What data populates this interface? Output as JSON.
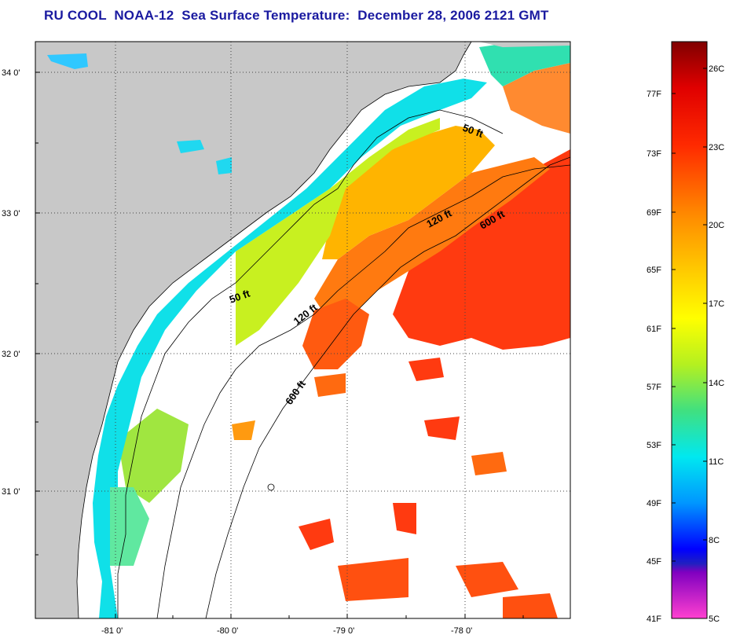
{
  "title": "RU COOL  NOAA-12  Sea Surface Temperature:  December 28, 2006 2121 GMT",
  "map": {
    "lat_labels": [
      "34 0'",
      "33 0'",
      "32 0'",
      "31 0'"
    ],
    "lon_labels": [
      "-81 0'",
      "-80 0'",
      "-79 0'",
      "-78 0'"
    ],
    "contours": [
      {
        "label": "50 ft"
      },
      {
        "label": "50 ft"
      },
      {
        "label": "120 ft"
      },
      {
        "label": "120 ft"
      },
      {
        "label": "600 ft"
      },
      {
        "label": "600 ft"
      }
    ],
    "colors": {
      "land": "#c8c8c8",
      "cloud": "#ffffff",
      "grid": "#444444"
    }
  },
  "colorbar": {
    "f_labels": [
      "77F",
      "73F",
      "69F",
      "65F",
      "61F",
      "57F",
      "53F",
      "49F",
      "45F",
      "41F"
    ],
    "c_labels": [
      "26C",
      "23C",
      "20C",
      "17C",
      "14C",
      "11C",
      "8C",
      "5C"
    ]
  }
}
